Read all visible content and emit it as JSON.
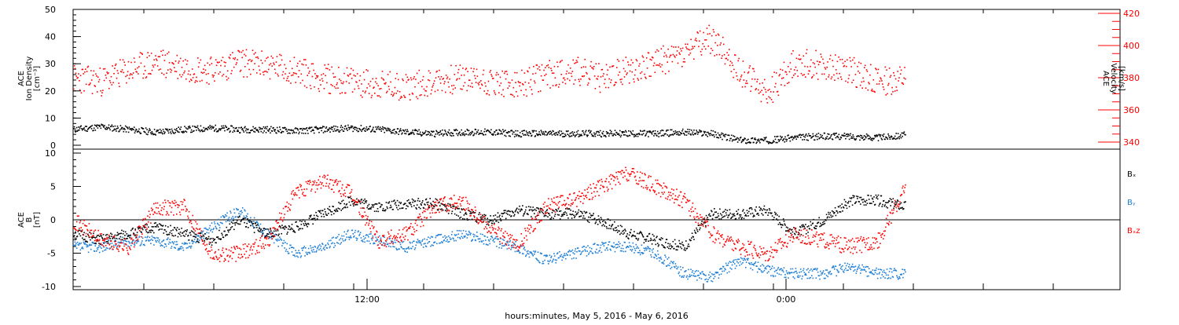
{
  "chart_data": [
    {
      "type": "scatter",
      "panel": "top",
      "ylabel_left": [
        "ACE",
        "Ion Density",
        "[cm⁻³]"
      ],
      "ylabel_right": [
        "ACE",
        "Velocity",
        "[km/s]"
      ],
      "yticks_left": [
        "0",
        "10",
        "20",
        "30",
        "40",
        "50"
      ],
      "yticks_right": [
        "340",
        "360",
        "380",
        "400",
        "420"
      ],
      "ylim_left": [
        0,
        50
      ],
      "ylim_right": [
        335,
        425
      ],
      "grid": false,
      "series": [
        {
          "axis": "left",
          "color": "#000000",
          "x": [
            0,
            1,
            2,
            3,
            4,
            5,
            6,
            7,
            8,
            9,
            10,
            11,
            12,
            13,
            14,
            15,
            16,
            17,
            18,
            19,
            20,
            21,
            22,
            23,
            24,
            25,
            26,
            27,
            28,
            29,
            30
          ],
          "values": [
            6,
            7,
            6,
            5,
            6,
            6.5,
            6,
            6,
            5.5,
            6,
            6.5,
            6,
            5,
            4.5,
            5,
            5,
            4.5,
            4.5,
            4.5,
            4.5,
            4.5,
            4.5,
            5,
            4.5,
            2,
            2,
            3,
            3.5,
            3.5,
            3,
            4
          ]
        },
        {
          "axis": "right",
          "color": "#ff0000",
          "x": [
            0,
            1,
            2,
            3,
            4,
            5,
            6,
            7,
            8,
            9,
            10,
            11,
            12,
            13,
            14,
            15,
            16,
            17,
            18,
            19,
            20,
            21,
            22,
            23,
            24,
            25,
            26,
            27,
            28,
            29,
            30
          ],
          "values": [
            380,
            378,
            385,
            390,
            387,
            385,
            390,
            388,
            385,
            380,
            378,
            376,
            375,
            378,
            380,
            378,
            375,
            382,
            385,
            380,
            385,
            390,
            395,
            405,
            385,
            370,
            390,
            388,
            385,
            378,
            380
          ]
        }
      ]
    },
    {
      "type": "scatter",
      "panel": "bottom",
      "ylabel": [
        "ACE",
        "B",
        "[nT]"
      ],
      "yticks": [
        "-10",
        "-5",
        "0",
        "5",
        "10"
      ],
      "ylim": [
        -10,
        10
      ],
      "xlabel": "hours:minutes, May  5, 2016 - May  6, 2016",
      "xticks": [
        "12:00",
        "0:00"
      ],
      "zero_line": true,
      "legend_position": "right",
      "series": [
        {
          "name": "Bₓ",
          "color": "#000000",
          "x": [
            0,
            1,
            2,
            3,
            4,
            5,
            6,
            7,
            8,
            9,
            10,
            11,
            12,
            13,
            14,
            15,
            16,
            17,
            18,
            19,
            20,
            21,
            22,
            23,
            24,
            25,
            26,
            27,
            28,
            29,
            30
          ],
          "values": [
            -2,
            -3,
            -2,
            -1,
            -2,
            -3,
            0,
            -2,
            -1,
            1,
            3,
            2,
            2.5,
            2.5,
            1,
            0,
            1.5,
            1,
            1,
            0,
            -2,
            -3,
            -4,
            1,
            1,
            1.5,
            -2,
            0,
            3,
            3,
            2
          ]
        },
        {
          "name": "Bᵧ",
          "color": "#1f7fd6",
          "x": [
            0,
            1,
            2,
            3,
            4,
            5,
            6,
            7,
            8,
            9,
            10,
            11,
            12,
            13,
            14,
            15,
            16,
            17,
            18,
            19,
            20,
            21,
            22,
            23,
            24,
            25,
            26,
            27,
            28,
            29,
            30
          ],
          "values": [
            -4,
            -4,
            -3,
            -3,
            -4,
            -1,
            1.5,
            -2,
            -5,
            -4,
            -2,
            -3,
            -4,
            -3,
            -2,
            -3,
            -4,
            -6,
            -5,
            -4,
            -4,
            -5,
            -8,
            -8.5,
            -6,
            -7.5,
            -8,
            -8,
            -7,
            -8,
            -8
          ]
        },
        {
          "name": "Bₓz",
          "color": "#ff0000",
          "x": [
            0,
            1,
            2,
            3,
            4,
            5,
            6,
            7,
            8,
            9,
            10,
            11,
            12,
            13,
            14,
            15,
            16,
            17,
            18,
            19,
            20,
            21,
            22,
            23,
            24,
            25,
            26,
            27,
            28,
            29,
            30
          ],
          "values": [
            0,
            -3,
            -4,
            2,
            2,
            -5,
            -5,
            -3,
            4,
            6,
            4,
            -3,
            -2,
            2,
            3,
            -1,
            -4,
            2,
            3,
            5,
            7,
            5,
            3,
            -2,
            -4,
            -5,
            -2,
            -3,
            -4,
            -3,
            5
          ]
        }
      ]
    }
  ]
}
